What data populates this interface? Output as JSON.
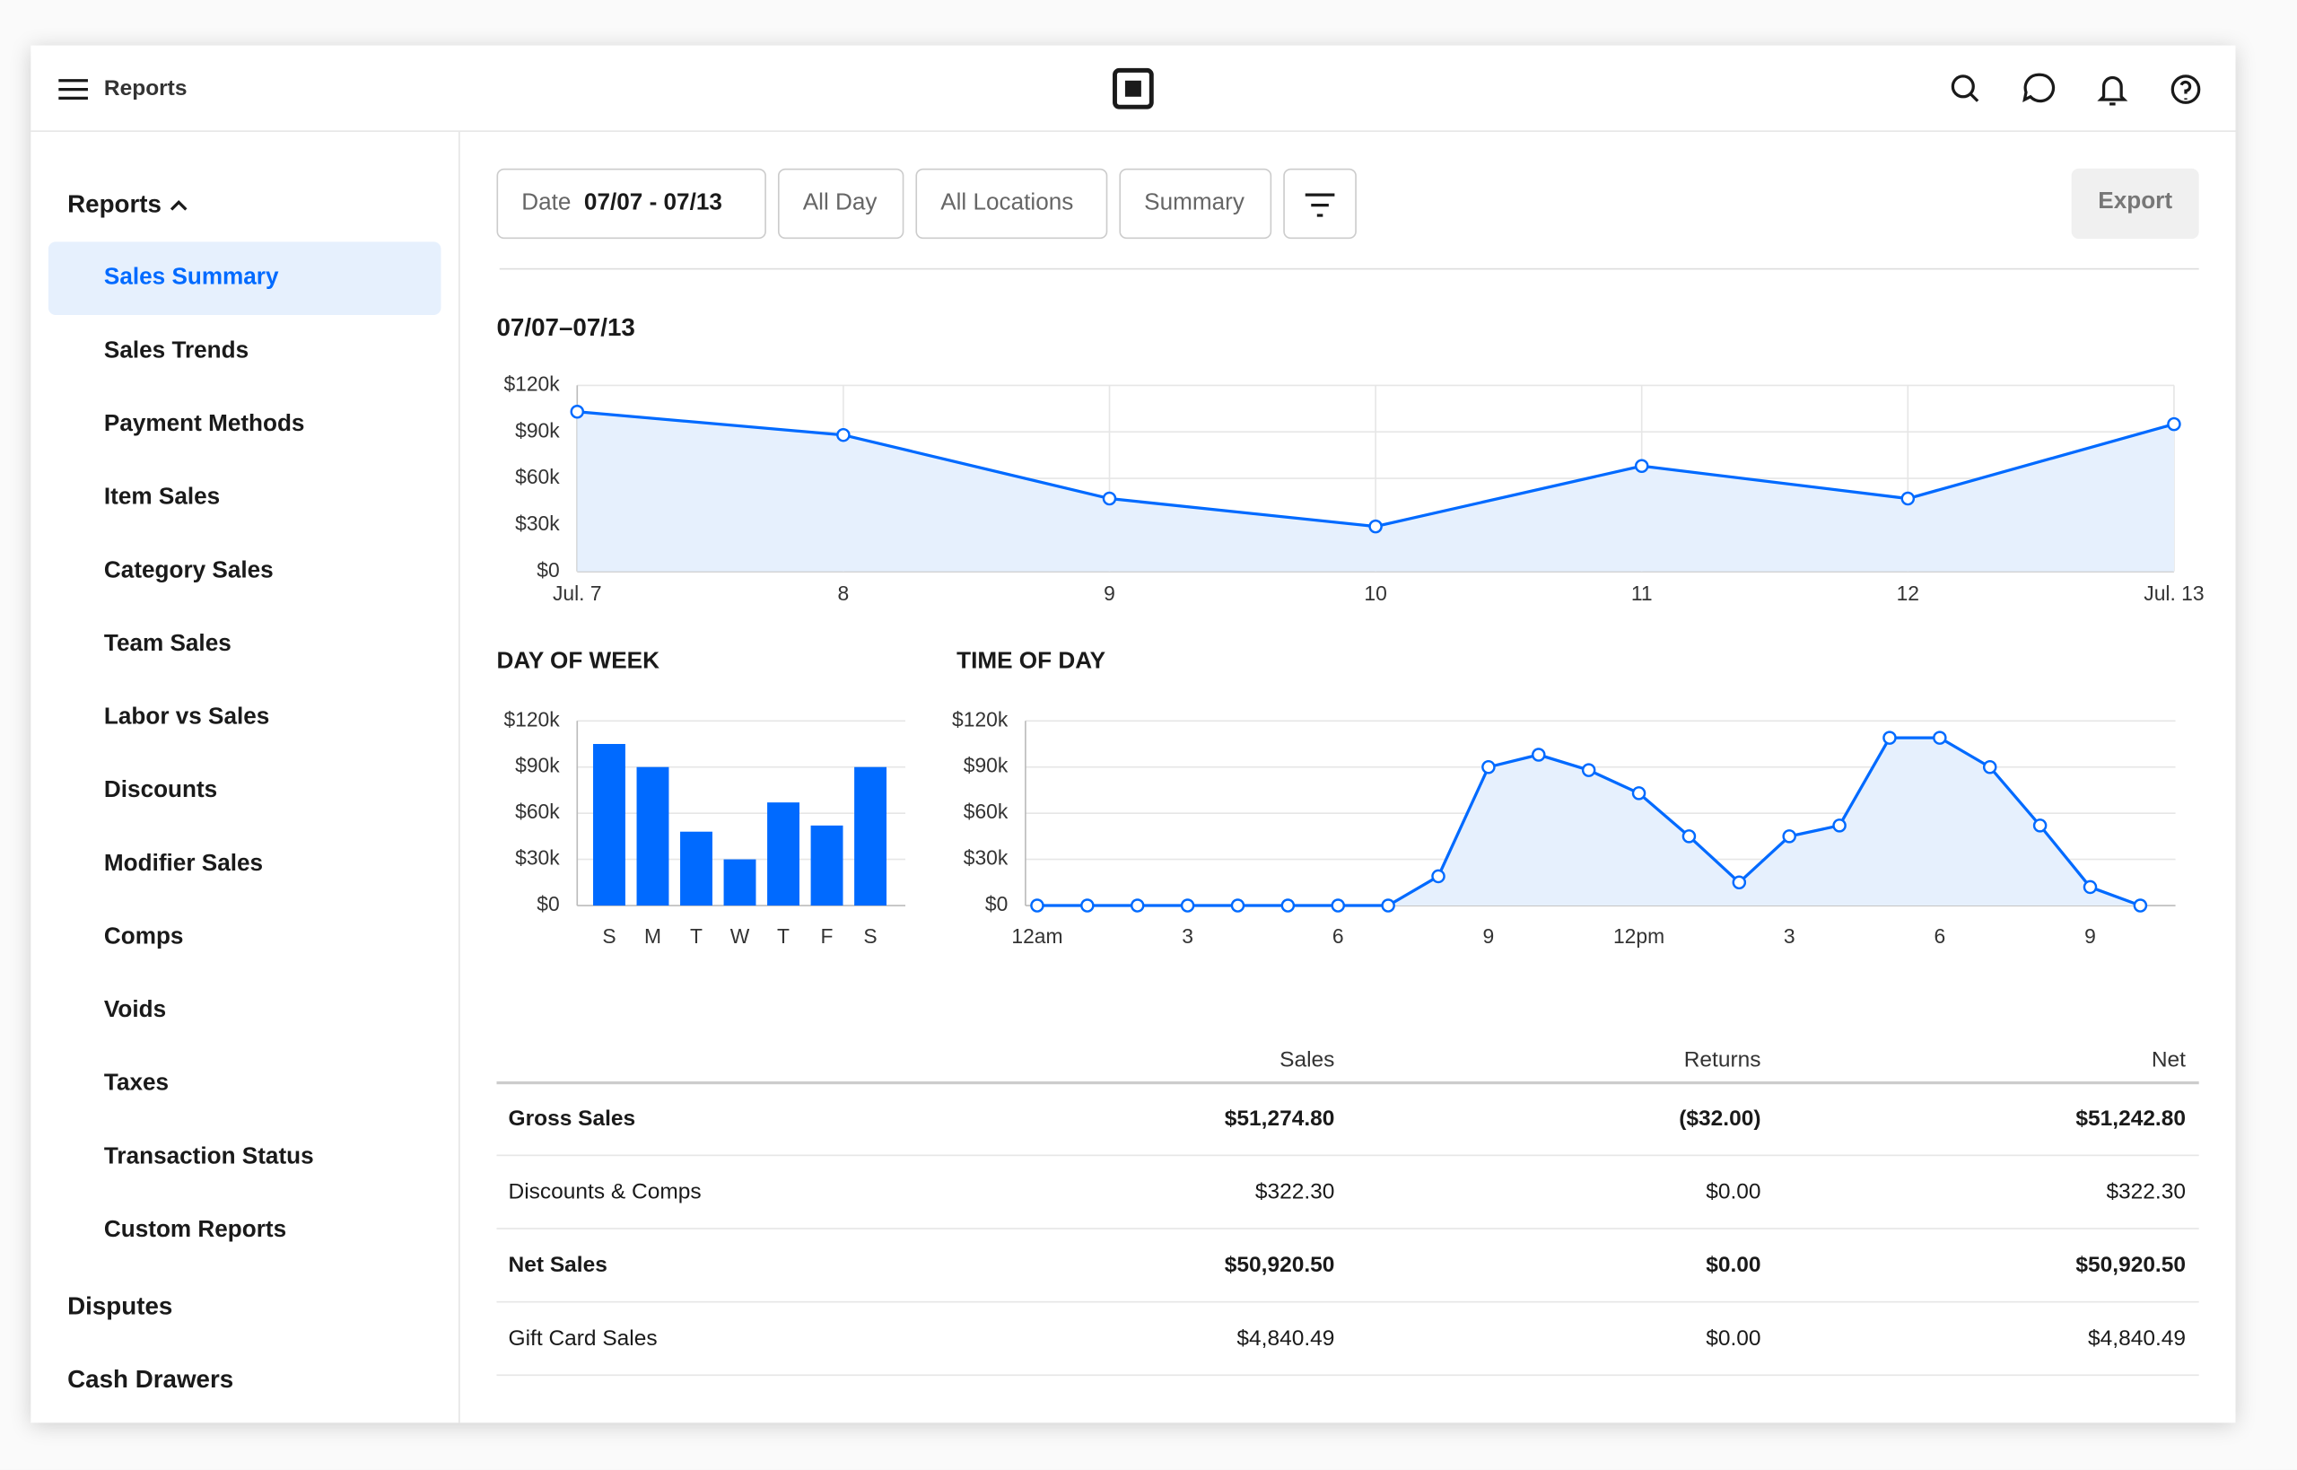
{
  "header": {
    "title": "Reports"
  },
  "sidebar": {
    "section": "Reports",
    "items": [
      "Sales Summary",
      "Sales Trends",
      "Payment Methods",
      "Item Sales",
      "Category Sales",
      "Team Sales",
      "Labor vs Sales",
      "Discounts",
      "Modifier Sales",
      "Comps",
      "Voids",
      "Taxes",
      "Transaction Status",
      "Custom Reports"
    ],
    "selected": 0,
    "footer_items": [
      "Disputes",
      "Cash Drawers"
    ]
  },
  "filters": {
    "date_label": "Date",
    "date_value": "07/07 - 07/13",
    "options": [
      "All Day",
      "All Locations",
      "Summary"
    ],
    "export": "Export"
  },
  "chart_data": [
    {
      "type": "line",
      "title": "07/07–07/13",
      "categories": [
        "Jul. 7",
        "8",
        "9",
        "10",
        "11",
        "12",
        "Jul. 13"
      ],
      "values": [
        103000,
        88000,
        47000,
        29000,
        68000,
        47000,
        95000
      ],
      "color": "#006aff",
      "fill": "#e6f0fd",
      "ylim": [
        0,
        120000
      ],
      "yticks": [
        {
          "value": 0,
          "label": "$0"
        },
        {
          "value": 30000,
          "label": "$30k"
        },
        {
          "value": 60000,
          "label": "$60k"
        },
        {
          "value": 90000,
          "label": "$90k"
        },
        {
          "value": 120000,
          "label": "$120k"
        }
      ],
      "grid": true,
      "x_grid": true
    },
    {
      "type": "bar",
      "title": "DAY OF WEEK",
      "categories": [
        "S",
        "M",
        "T",
        "W",
        "T",
        "F",
        "S"
      ],
      "values": [
        105000,
        90000,
        48000,
        30000,
        67000,
        52000,
        90000
      ],
      "color": "#006aff",
      "ylim": [
        0,
        120000
      ],
      "yticks": [
        {
          "value": 0,
          "label": "$0"
        },
        {
          "value": 30000,
          "label": "$30k"
        },
        {
          "value": 60000,
          "label": "$60k"
        },
        {
          "value": 90000,
          "label": "$90k"
        },
        {
          "value": 120000,
          "label": "$120k"
        }
      ],
      "grid": true
    },
    {
      "type": "line",
      "title": "TIME OF DAY",
      "x": [
        0,
        1,
        2,
        3,
        4,
        5,
        6,
        7,
        8,
        9,
        10,
        11,
        12,
        13,
        14,
        15,
        16,
        17,
        18,
        19,
        20,
        21,
        22
      ],
      "values": [
        0,
        0,
        0,
        0,
        0,
        0,
        0,
        0,
        19000,
        90000,
        98000,
        88000,
        73000,
        45000,
        15000,
        45000,
        52000,
        109000,
        109000,
        90000,
        52000,
        12000,
        0
      ],
      "color": "#006aff",
      "fill": "#e6f0fd",
      "xlim": [
        0,
        22
      ],
      "xticks": [
        {
          "value": 0,
          "label": "12am"
        },
        3,
        6,
        9,
        {
          "value": 12,
          "label": "12pm"
        },
        {
          "value": 15,
          "label": "3"
        },
        {
          "value": 18,
          "label": "6"
        },
        {
          "value": 21,
          "label": "9"
        }
      ],
      "ylim": [
        0,
        120000
      ],
      "yticks": [
        {
          "value": 0,
          "label": "$0"
        },
        {
          "value": 30000,
          "label": "$30k"
        },
        {
          "value": 60000,
          "label": "$60k"
        },
        {
          "value": 90000,
          "label": "$90k"
        },
        {
          "value": 120000,
          "label": "$120k"
        }
      ],
      "grid": true
    }
  ],
  "table": {
    "columns": [
      "Sales",
      "Returns",
      "Net"
    ],
    "rows": [
      {
        "label": "Gross Sales",
        "bold": true,
        "cells": [
          "$51,274.80",
          "($32.00)",
          "$51,242.80"
        ]
      },
      {
        "label": "Discounts & Comps",
        "bold": false,
        "cells": [
          "$322.30",
          "$0.00",
          "$322.30"
        ]
      },
      {
        "label": "Net Sales",
        "bold": true,
        "cells": [
          "$50,920.50",
          "$0.00",
          "$50,920.50"
        ]
      },
      {
        "label": "Gift Card Sales",
        "bold": false,
        "cells": [
          "$4,840.49",
          "$0.00",
          "$4,840.49"
        ]
      }
    ]
  }
}
